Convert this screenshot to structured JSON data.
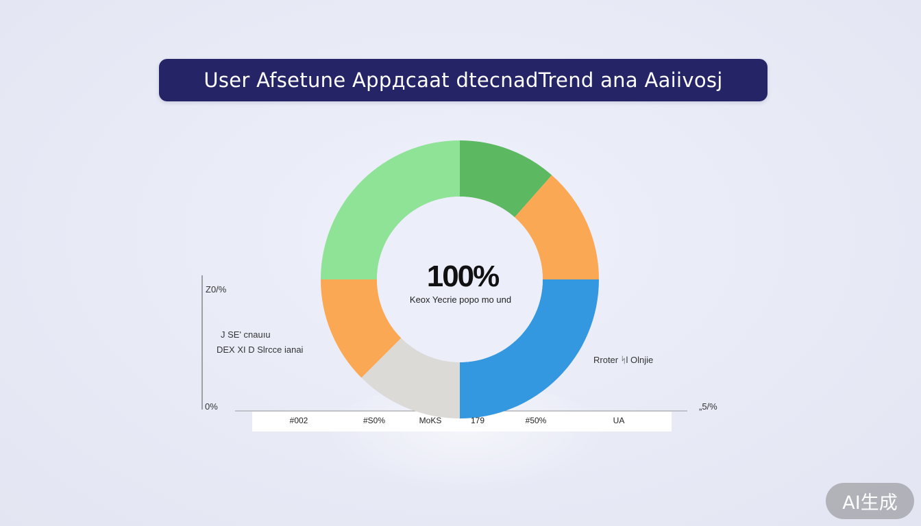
{
  "title": "User Afsetune Appдcaat dtecnadTrend ana Aaiivosj",
  "colors": {
    "banner": "#252466",
    "light_green": "#8fe396",
    "green": "#5db862",
    "orange": "#fba855",
    "blue": "#3498e0",
    "gray": "#dcdad6",
    "background": "#e8eaf6"
  },
  "chart_data": {
    "type": "pie",
    "style": "donut",
    "center_value": "100%",
    "center_label": "Keox Yecrie popo mo und",
    "slices": [
      {
        "label": "",
        "value": 11.5,
        "color": "#5db862"
      },
      {
        "label": "",
        "value": 13.5,
        "color": "#fba855"
      },
      {
        "label": "",
        "value": 25,
        "color": "#3498e0"
      },
      {
        "label": "",
        "value": 12.5,
        "color": "#dcdad6"
      },
      {
        "label": "",
        "value": 12.5,
        "color": "#fba855"
      },
      {
        "label": "",
        "value": 25,
        "color": "#8fe396"
      }
    ],
    "y_tick_labels": [
      "Z0/%",
      "0%"
    ],
    "right_tick_label": "„5/%",
    "left_annotations": [
      "J SE' cnauıu",
      "DEX XI D Slrcce ianai"
    ],
    "right_annotation": "Rroter ᛋl Olnjie",
    "x_tick_labels": [
      "#002",
      "#S0%",
      "MoKS",
      "179",
      "#50%",
      "UA"
    ]
  },
  "badge": "AI生成"
}
